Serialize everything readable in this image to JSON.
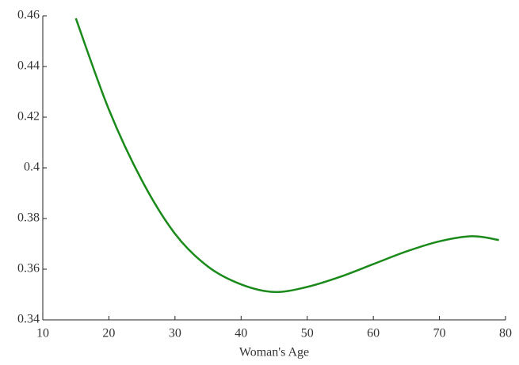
{
  "chart_data": {
    "type": "line",
    "x_label": "Woman's Age",
    "x": [
      15,
      20,
      25,
      30,
      35,
      40,
      45,
      50,
      55,
      60,
      65,
      70,
      75,
      79
    ],
    "series": [
      {
        "color": "#1a8a1a",
        "values": [
          0.459,
          0.423,
          0.395,
          0.374,
          0.361,
          0.354,
          0.351,
          0.353,
          0.357,
          0.362,
          0.367,
          0.371,
          0.373,
          0.3715
        ]
      }
    ],
    "xlim": [
      10,
      80
    ],
    "xticks": [
      10,
      20,
      30,
      40,
      50,
      60,
      70,
      80
    ],
    "ylim": [
      0.34,
      0.46
    ],
    "yticks": [
      0.34,
      0.36,
      0.38,
      0.4,
      0.42,
      0.44,
      0.46
    ]
  }
}
